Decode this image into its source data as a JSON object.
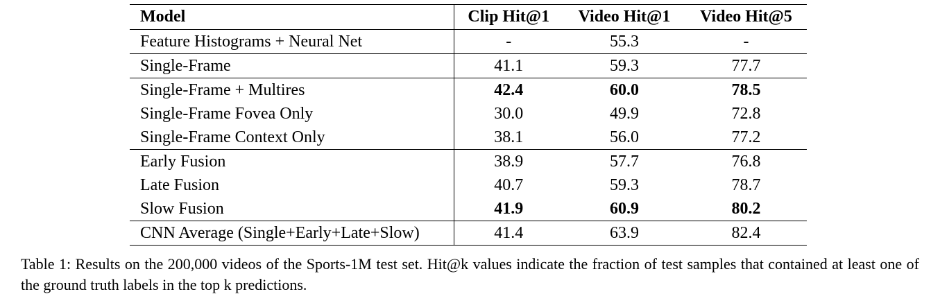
{
  "table": {
    "headers": [
      "Model",
      "Clip Hit@1",
      "Video Hit@1",
      "Video Hit@5"
    ],
    "rows": [
      {
        "model": "Feature Histograms + Neural Net",
        "clip1": "-",
        "video1": "55.3",
        "video5": "-",
        "bold": [
          false,
          false,
          false
        ],
        "group_end": true
      },
      {
        "model": "Single-Frame",
        "clip1": "41.1",
        "video1": "59.3",
        "video5": "77.7",
        "bold": [
          false,
          false,
          false
        ],
        "group_end": true
      },
      {
        "model": "Single-Frame + Multires",
        "clip1": "42.4",
        "video1": "60.0",
        "video5": "78.5",
        "bold": [
          true,
          true,
          true
        ],
        "group_end": false
      },
      {
        "model": "Single-Frame Fovea Only",
        "clip1": "30.0",
        "video1": "49.9",
        "video5": "72.8",
        "bold": [
          false,
          false,
          false
        ],
        "group_end": false
      },
      {
        "model": "Single-Frame Context Only",
        "clip1": "38.1",
        "video1": "56.0",
        "video5": "77.2",
        "bold": [
          false,
          false,
          false
        ],
        "group_end": true
      },
      {
        "model": "Early Fusion",
        "clip1": "38.9",
        "video1": "57.7",
        "video5": "76.8",
        "bold": [
          false,
          false,
          false
        ],
        "group_end": false
      },
      {
        "model": "Late Fusion",
        "clip1": "40.7",
        "video1": "59.3",
        "video5": "78.7",
        "bold": [
          false,
          false,
          false
        ],
        "group_end": false
      },
      {
        "model": "Slow Fusion",
        "clip1": "41.9",
        "video1": "60.9",
        "video5": "80.2",
        "bold": [
          true,
          true,
          true
        ],
        "group_end": true
      },
      {
        "model": "CNN Average (Single+Early+Late+Slow)",
        "clip1": "41.4",
        "video1": "63.9",
        "video5": "82.4",
        "bold": [
          false,
          false,
          false
        ],
        "group_end": false
      }
    ]
  },
  "caption": "Table 1: Results on the 200,000 videos of the Sports-1M test set. Hit@k values indicate the fraction of test samples that contained at least one of the ground truth labels in the top k predictions."
}
